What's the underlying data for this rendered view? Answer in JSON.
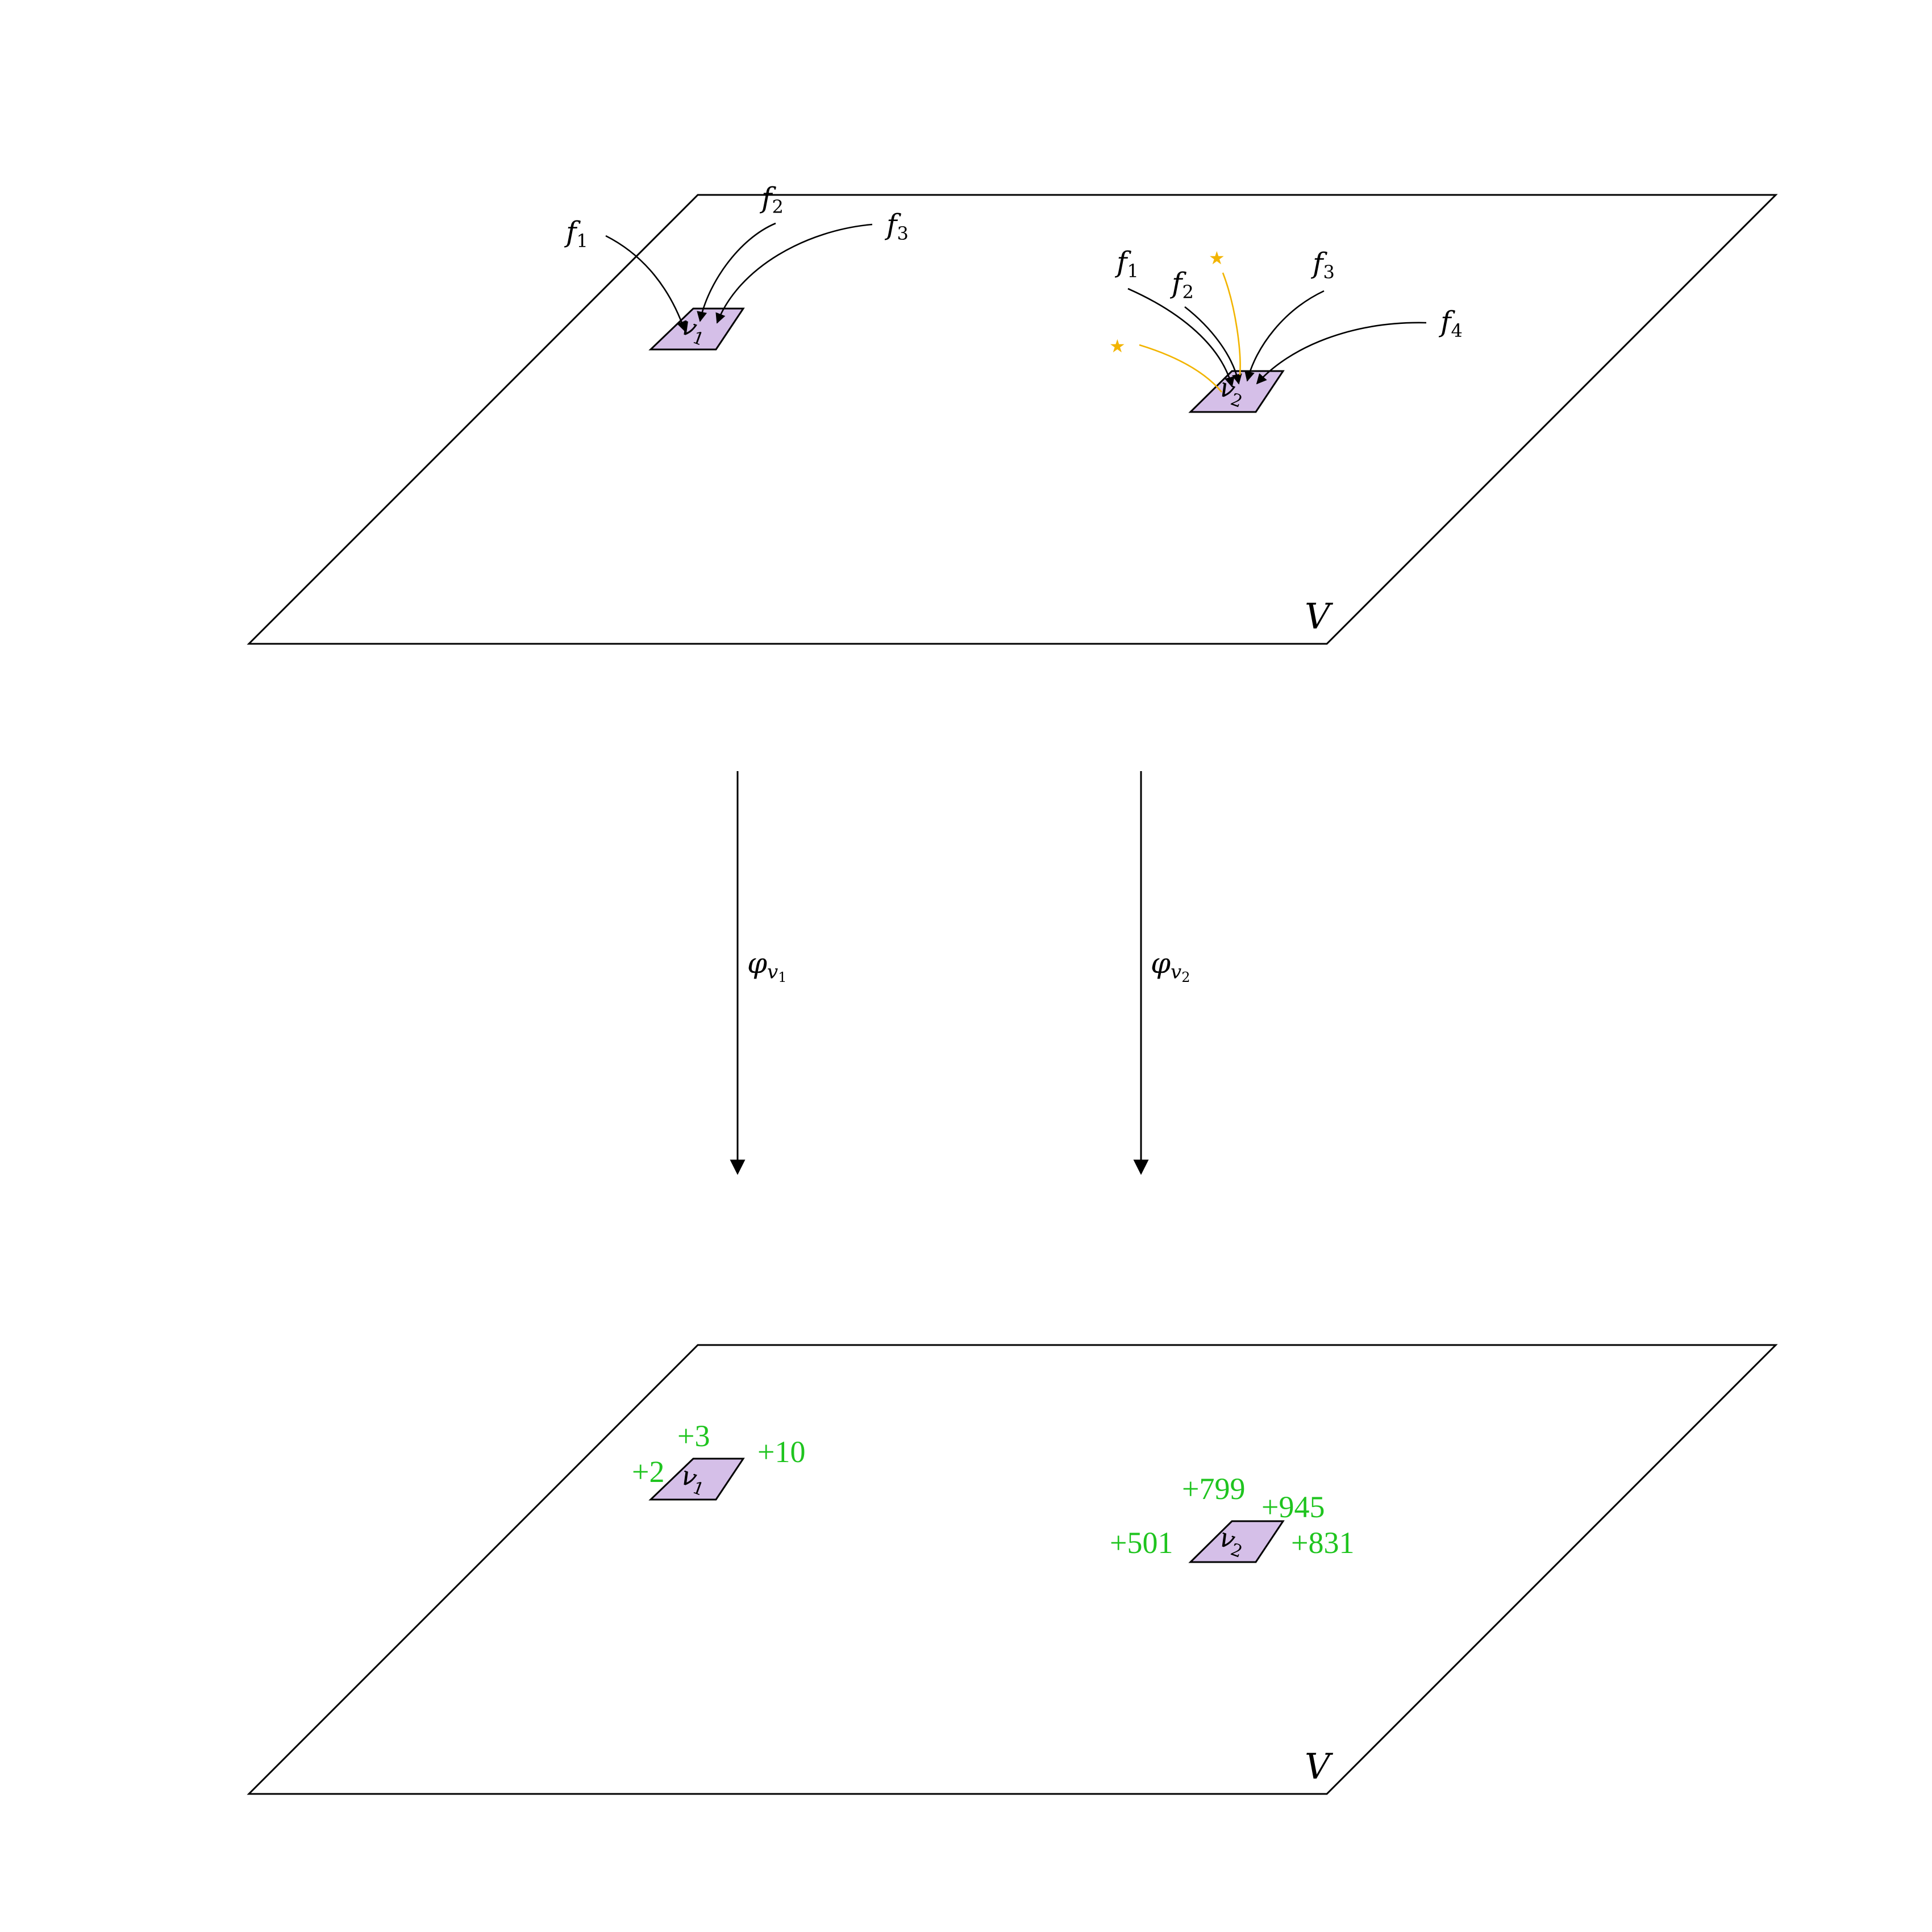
{
  "planes": {
    "top": {
      "label": "V"
    },
    "bottom": {
      "label": "V"
    }
  },
  "nodes": {
    "v1": {
      "base": "v",
      "sub": "1",
      "fill": "#d5bfe8"
    },
    "v2": {
      "base": "v",
      "sub": "2",
      "fill": "#d5bfe8"
    }
  },
  "top_v1_arrows": [
    {
      "base": "f",
      "sub": "1"
    },
    {
      "base": "f",
      "sub": "2"
    },
    {
      "base": "f",
      "sub": "3"
    }
  ],
  "top_v2_arrows": [
    {
      "base": "f",
      "sub": "1"
    },
    {
      "base": "f",
      "sub": "2"
    },
    {
      "base": "f",
      "sub": "3"
    },
    {
      "base": "f",
      "sub": "4"
    }
  ],
  "stars": {
    "symbol": "★",
    "color": "#f2b400",
    "icon": "star-icon"
  },
  "maps": {
    "left": {
      "base": "φ",
      "sub_base": "v",
      "sub_sub": "1"
    },
    "right": {
      "base": "φ",
      "sub_base": "v",
      "sub_sub": "2"
    }
  },
  "bottom_v1_numbers": [
    "+3",
    "+10",
    "+2"
  ],
  "bottom_v2_numbers": [
    "+799",
    "+945",
    "+501",
    "+831"
  ],
  "colors": {
    "node_fill": "#d5bfe8",
    "numbers": "#1fc41f",
    "stars": "#f2b400"
  }
}
